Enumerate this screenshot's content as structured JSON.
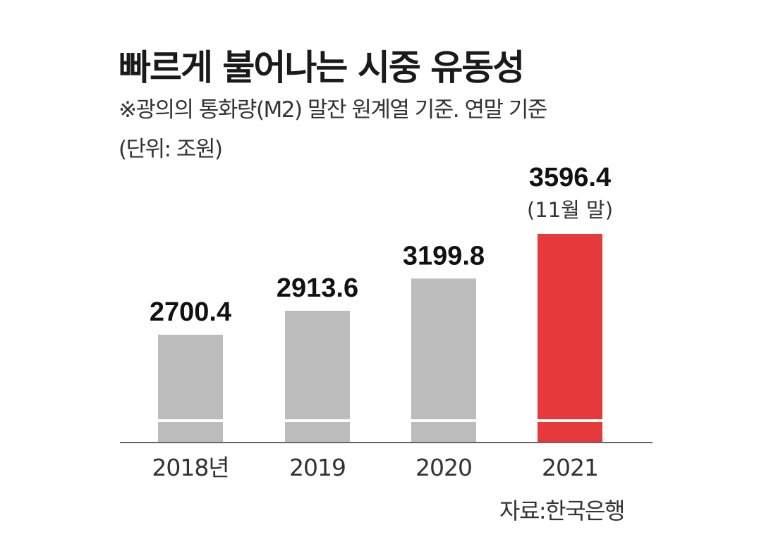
{
  "chart_data": {
    "type": "bar",
    "title": "빠르게 불어나는 시중 유동성",
    "subtitle": "※광의의 통화량(M2) 말잔 원계열 기준. 연말 기준",
    "unit": "(단위: 조원)",
    "categories": [
      "2018년",
      "2019",
      "2020",
      "2021"
    ],
    "values": [
      2700.4,
      2913.6,
      3199.8,
      3596.4
    ],
    "value_labels": [
      "2700.4",
      "2913.6",
      "3199.8",
      "3596.4"
    ],
    "annotations": [
      {
        "category": "2021",
        "text": "(11월 말)"
      }
    ],
    "colors": {
      "default": "#bcbcbc",
      "highlight": "#e5393b",
      "baseline": "#666666"
    },
    "highlight_index": 3,
    "source": "자료:한국은행"
  }
}
